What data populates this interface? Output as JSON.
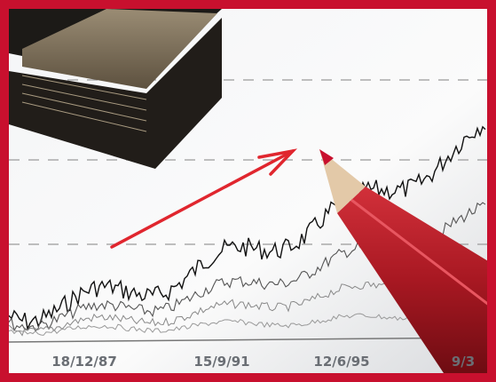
{
  "photo": {
    "axis_labels": [
      "18/12/87",
      "15/9/91",
      "12/6/95",
      "9/3"
    ]
  }
}
